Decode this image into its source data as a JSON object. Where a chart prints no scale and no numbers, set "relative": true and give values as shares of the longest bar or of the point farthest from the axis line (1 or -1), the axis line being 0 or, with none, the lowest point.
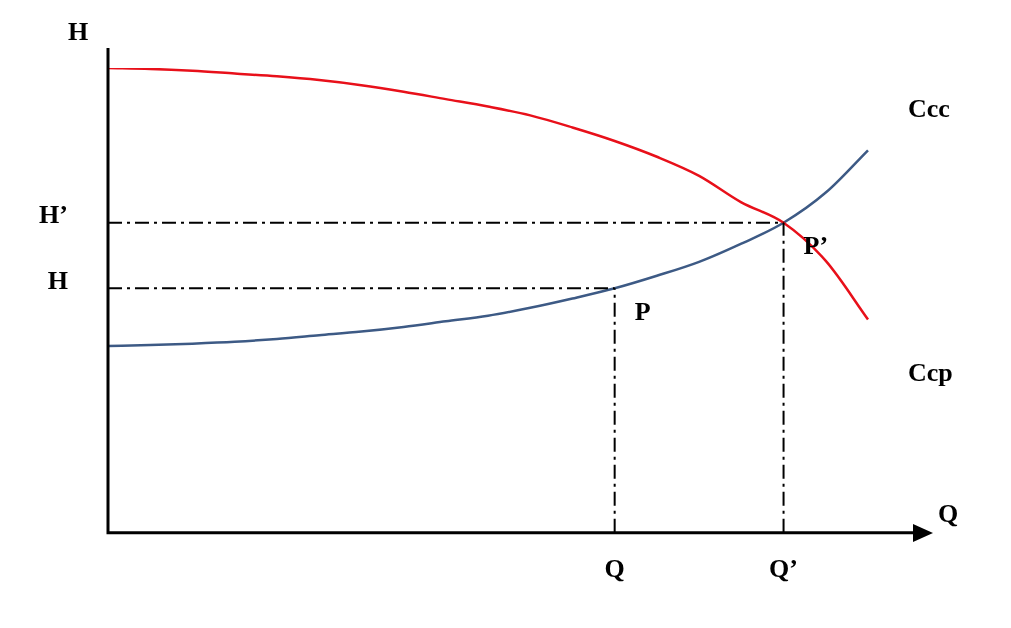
{
  "chart_data": {
    "type": "line",
    "relative": true,
    "ylabel": "H",
    "xlabel": "Q",
    "categories": [
      null,
      null,
      null,
      null,
      null,
      null,
      null,
      null,
      null,
      null,
      null,
      null,
      "Q",
      null,
      null,
      null,
      "Q’",
      null,
      null
    ],
    "series": [
      {
        "name": "Ccp",
        "color": "#e8101a",
        "values": [
          1,
          0.998,
          0.994,
          0.988,
          0.982,
          0.974,
          0.963,
          0.949,
          0.933,
          0.917,
          0.898,
          0.872,
          0.843,
          0.809,
          0.768,
          0.711,
          0.667,
          0.585,
          0.459
        ]
      },
      {
        "name": "Ccc",
        "color": "#3d5a85",
        "values": [
          0.402,
          0.404,
          0.407,
          0.411,
          0.417,
          0.425,
          0.433,
          0.443,
          0.455,
          0.467,
          0.484,
          0.504,
          0.526,
          0.553,
          0.583,
          0.622,
          0.667,
          0.732,
          0.823
        ]
      }
    ],
    "ref_lines": [
      {
        "axis": "y",
        "value": 0.667,
        "label": "H’",
        "line_style": "dashed",
        "color": "#000000"
      },
      {
        "axis": "y",
        "value": 0.526,
        "label": "H",
        "line_style": "dashed",
        "color": "#000000"
      },
      {
        "axis": "x",
        "value": "Q",
        "line_style": "dashed",
        "color": "#000000"
      },
      {
        "axis": "x",
        "value": "Q’",
        "line_style": "dashed",
        "color": "#000000"
      }
    ],
    "annotations": [
      {
        "text": "P’",
        "x": "Q’",
        "y": 0.667
      },
      {
        "text": "P",
        "x": "Q",
        "y": 0.526
      }
    ],
    "legend": false,
    "grid": false,
    "marker": "none",
    "line_style": "solid"
  }
}
